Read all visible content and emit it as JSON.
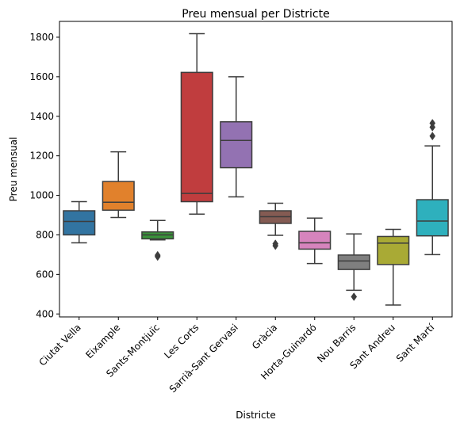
{
  "chart_data": {
    "type": "box",
    "title": "Preu mensual per Districte",
    "xlabel": "Districte",
    "ylabel": "Preu mensual",
    "ylim": [
      385,
      1880
    ],
    "yticks": [
      400,
      600,
      800,
      1000,
      1200,
      1400,
      1600,
      1800
    ],
    "ytick_labels": [
      "400",
      "600",
      "800",
      "1000",
      "1200",
      "1400",
      "1600",
      "1800"
    ],
    "grid": false,
    "legend": "none",
    "categories": [
      "Ciutat Vella",
      "Eixample",
      "Sants-Montjuïc",
      "Les Corts",
      "Sarrià-Sant Gervasi",
      "Gràcia",
      "Horta-Guinardó",
      "Nou Barris",
      "Sant Andreu",
      "Sant Martí"
    ],
    "boxes": [
      {
        "whisker_low": 760,
        "q1": 800,
        "median": 868,
        "q3": 922,
        "whisker_high": 968,
        "outliers": [],
        "color": "#3274a1"
      },
      {
        "whisker_low": 888,
        "q1": 925,
        "median": 965,
        "q3": 1070,
        "whisker_high": 1220,
        "outliers": [],
        "color": "#e1812c"
      },
      {
        "whisker_low": 775,
        "q1": 780,
        "median": 800,
        "q3": 815,
        "whisker_high": 873,
        "outliers": [
          690,
          697
        ],
        "color": "#3a923a"
      },
      {
        "whisker_low": 905,
        "q1": 968,
        "median": 1010,
        "q3": 1622,
        "whisker_high": 1818,
        "outliers": [],
        "color": "#c03d3e"
      },
      {
        "whisker_low": 992,
        "q1": 1140,
        "median": 1278,
        "q3": 1372,
        "whisker_high": 1600,
        "outliers": [],
        "color": "#9372b2"
      },
      {
        "whisker_low": 798,
        "q1": 858,
        "median": 892,
        "q3": 922,
        "whisker_high": 960,
        "outliers": [
          745,
          755
        ],
        "color": "#845b53"
      },
      {
        "whisker_low": 655,
        "q1": 728,
        "median": 760,
        "q3": 818,
        "whisker_high": 885,
        "outliers": [],
        "color": "#d684bd"
      },
      {
        "whisker_low": 520,
        "q1": 625,
        "median": 668,
        "q3": 698,
        "whisker_high": 805,
        "outliers": [
          487
        ],
        "color": "#7f7f7f"
      },
      {
        "whisker_low": 445,
        "q1": 650,
        "median": 758,
        "q3": 792,
        "whisker_high": 828,
        "outliers": [],
        "color": "#a9aa35"
      },
      {
        "whisker_low": 700,
        "q1": 795,
        "median": 870,
        "q3": 978,
        "whisker_high": 1250,
        "outliers": [
          1300,
          1345,
          1365
        ],
        "color": "#2eb0bd"
      }
    ]
  }
}
